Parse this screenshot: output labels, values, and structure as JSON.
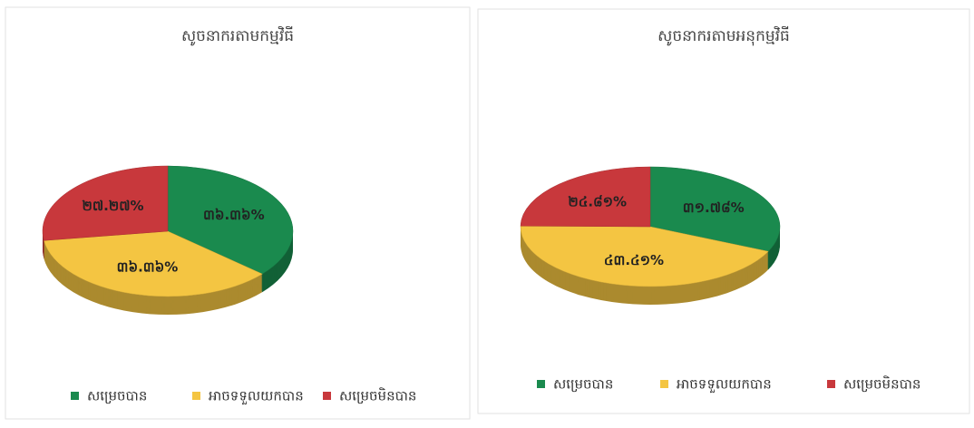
{
  "chart_data": [
    {
      "type": "pie",
      "title": "សូចនាករតាមកម្មវិធី",
      "categories": [
        "សម្រេចបាន",
        "អាចទទួលយកបាន",
        "សម្រេចមិនបាន"
      ],
      "values": [
        36.36,
        36.36,
        27.27
      ],
      "value_labels": [
        "៣៦.៣៦%",
        "៣៦.៣៦%",
        "២៧.២៧%"
      ],
      "colors": [
        "#1a8a4e",
        "#f4c542",
        "#c8383c"
      ]
    },
    {
      "type": "pie",
      "title": "សូចនាករតាមអនុកម្មវិធី",
      "categories": [
        "សម្រេចបាន",
        "អាចទទួលយកបាន",
        "សម្រេចមិនបាន"
      ],
      "values": [
        31.78,
        43.41,
        24.81
      ],
      "value_labels": [
        "៣១.៧៨%",
        "៤៣.៤១%",
        "២៤.៨១%"
      ],
      "colors": [
        "#1a8a4e",
        "#f4c542",
        "#c8383c"
      ]
    }
  ]
}
